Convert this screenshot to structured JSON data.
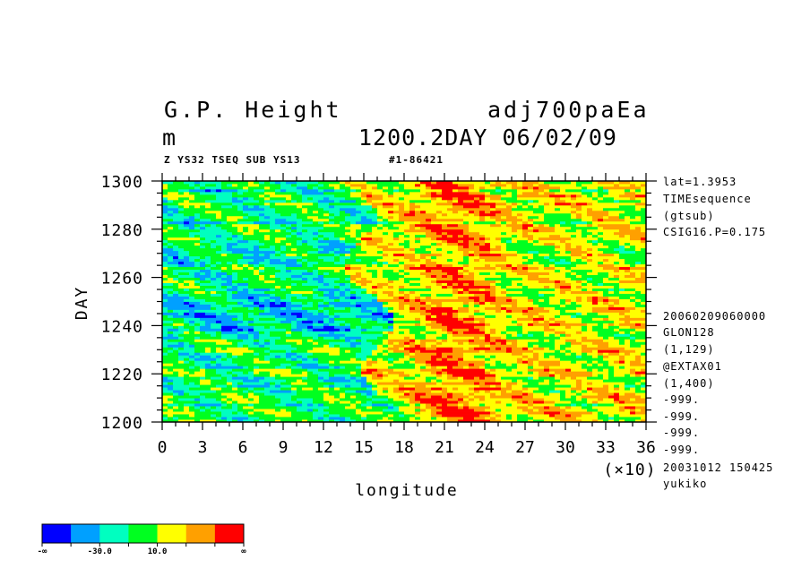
{
  "header": {
    "title_left": "G.P. Height",
    "title_right": "adj700paEa",
    "unit": "m",
    "subtitle_right": "1200.2DAY 06/02/09",
    "small_left": "Z YS32 TSEQ SUB YS13",
    "small_right": "#1-86421"
  },
  "side_info": {
    "top": [
      "lat=1.3953",
      "TIMEsequence",
      "(gtsub)",
      "CSIG16.P=0.175"
    ],
    "bottom": [
      "20060209060000",
      "GLON128",
      "(1,129)",
      "@EXTAX01",
      "(1,400)",
      "-999.",
      "-999.",
      "-999.",
      "-999.",
      "20031012 150425",
      "yukiko"
    ]
  },
  "colorbar": {
    "colors": [
      "#0000ff",
      "#00a0ff",
      "#00ffc0",
      "#00ff20",
      "#ffff00",
      "#ffa000",
      "#ff0000"
    ],
    "labels": [
      "-∞",
      "-30.0",
      "10.0",
      "∞"
    ]
  },
  "chart_data": {
    "type": "heatmap",
    "xlabel": "longitude",
    "ylabel": "DAY",
    "x_multiplier": "(×10)",
    "xlim": [
      0,
      36
    ],
    "ylim": [
      1200,
      1300
    ],
    "x_ticks": [
      0,
      3,
      6,
      9,
      12,
      15,
      18,
      21,
      24,
      27,
      30,
      33,
      36
    ],
    "y_ticks": [
      1200,
      1220,
      1240,
      1260,
      1280,
      1300
    ],
    "levels": [
      -30.0,
      10.0
    ],
    "field_summary": "Longitude-time section of G.P. height anomaly; mostly green/cyan (near zero) west of ~16 (x10), with yellow/orange/red positive anomalies between ~17 and 36 (x10), strongest around 20-24 (x10) near days 1215-1300; blue negative streaks near days 1240-1250 west of 17 (x10)."
  }
}
